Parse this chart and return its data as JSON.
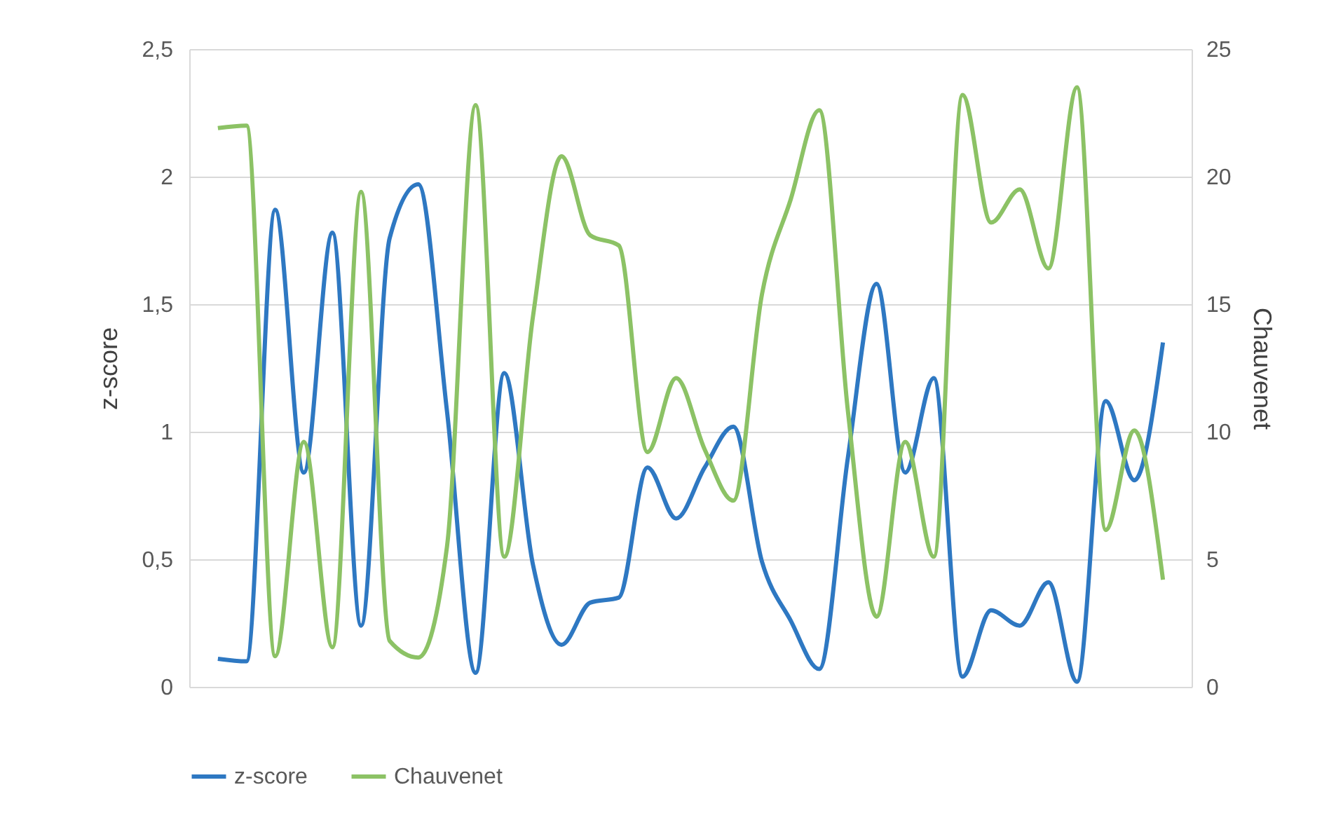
{
  "chart_data": {
    "type": "line",
    "categories": [
      null,
      null,
      null,
      null,
      null,
      null,
      null,
      null,
      null,
      null,
      null,
      null,
      null,
      null,
      null,
      null,
      null,
      null,
      null,
      null,
      null,
      null,
      null,
      null,
      null,
      null,
      null,
      null,
      null,
      null,
      null,
      null,
      null,
      null
    ],
    "ylabel": "z-score",
    "y2label": "Chauvenet",
    "ylim": [
      0,
      2.5
    ],
    "yticks": [
      {
        "value": 0,
        "label": "0"
      },
      {
        "value": 0.5,
        "label": "0,5"
      },
      {
        "value": 1,
        "label": "1"
      },
      {
        "value": 1.5,
        "label": "1,5"
      },
      {
        "value": 2,
        "label": "2"
      },
      {
        "value": 2.5,
        "label": "2,5"
      }
    ],
    "y2lim": [
      0,
      25
    ],
    "y2ticks": [
      0,
      5,
      10,
      15,
      20,
      25
    ],
    "grid": "y",
    "legend": "bottom",
    "marker": "none",
    "line_style": "solid",
    "series": [
      {
        "name": "z-score",
        "color": "#2e78c2",
        "values": [
          0.11,
          0.1,
          1.87,
          0.84,
          1.78,
          0.24,
          1.76,
          1.97,
          1.08,
          0.055,
          1.23,
          0.48,
          0.165,
          0.33,
          0.35,
          0.86,
          0.66,
          0.86,
          1.02,
          0.49,
          0.26,
          0.07,
          0.9,
          1.58,
          0.84,
          1.21,
          0.04,
          0.3,
          0.24,
          0.41,
          0.02,
          1.12,
          0.81,
          1.35
        ]
      },
      {
        "name": "Chauvenet",
        "color": "#8cc265",
        "axis": "y2",
        "values": [
          21.9,
          22.0,
          1.2,
          9.6,
          1.55,
          19.4,
          1.8,
          1.15,
          5.5,
          22.8,
          5.1,
          14.5,
          20.8,
          17.7,
          17.3,
          9.2,
          12.1,
          9.3,
          7.3,
          15.4,
          19.1,
          22.6,
          10.8,
          2.75,
          9.6,
          5.1,
          23.2,
          18.2,
          19.5,
          16.4,
          23.5,
          6.15,
          10.05,
          4.2
        ]
      }
    ]
  }
}
